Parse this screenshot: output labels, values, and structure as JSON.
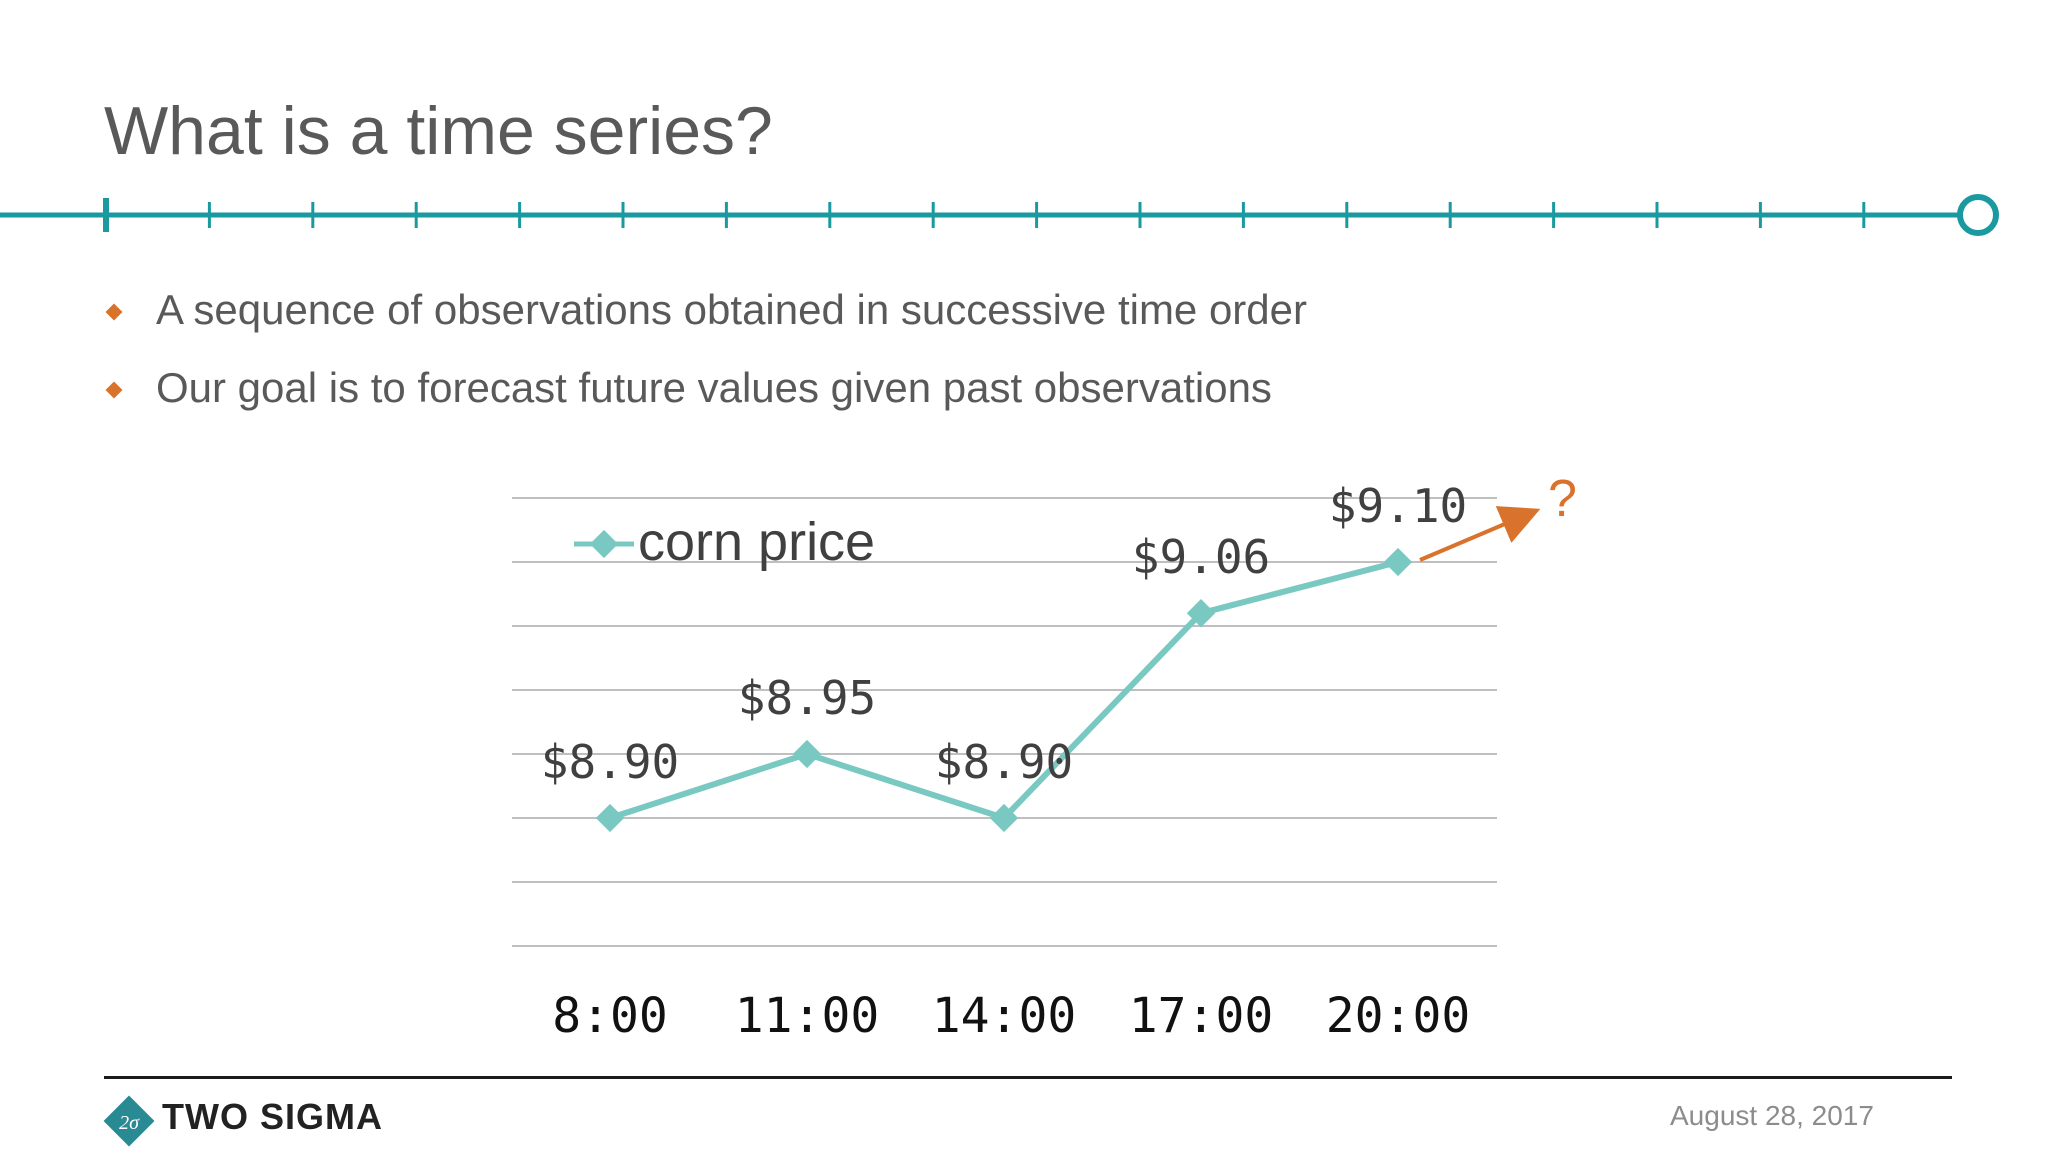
{
  "slide": {
    "title": "What is a time series?",
    "bullets": [
      "A sequence of observations obtained in successive time order",
      "Our goal is to forecast future values given past observations"
    ],
    "accent_color": "#1a9aa0",
    "bullet_color": "#d9722b"
  },
  "chart_data": {
    "type": "line",
    "categories": [
      "8:00",
      "11:00",
      "14:00",
      "17:00",
      "20:00"
    ],
    "series": [
      {
        "name": "corn price",
        "values": [
          8.9,
          8.95,
          8.9,
          9.06,
          9.1
        ],
        "labels": [
          "$8.90",
          "$8.95",
          "$8.90",
          "$9.06",
          "$9.10"
        ],
        "color": "#79c9c2"
      }
    ],
    "forecast_annotation": {
      "text": "?",
      "color": "#d9722b"
    },
    "ylim": [
      8.8,
      9.15
    ],
    "grid": true,
    "legend": "top-left",
    "title": "",
    "xlabel": "",
    "ylabel": ""
  },
  "footer": {
    "brand": "TWO SIGMA",
    "logo_glyph": "2σ",
    "date": "August 28, 2017"
  }
}
